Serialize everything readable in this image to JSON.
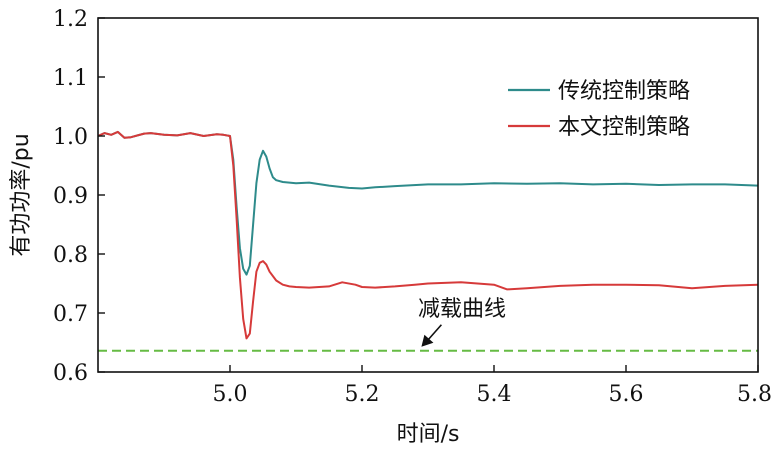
{
  "chart_data": {
    "type": "line",
    "xlabel": "时间/s",
    "ylabel": "有功功率/pu",
    "xlim": [
      4.8,
      5.8
    ],
    "ylim": [
      0.6,
      1.2
    ],
    "xticks": [
      "5.0",
      "5.2",
      "5.4",
      "5.6",
      "5.8"
    ],
    "xtick_values": [
      5.0,
      5.2,
      5.4,
      5.6,
      5.8
    ],
    "yticks": [
      "0.6",
      "0.7",
      "0.8",
      "0.9",
      "1.0",
      "1.1",
      "1.2"
    ],
    "ytick_values": [
      0.6,
      0.7,
      0.8,
      0.9,
      1.0,
      1.1,
      1.2
    ],
    "grid": false,
    "legend_position": "top-right",
    "annotation": {
      "text": "减载曲线",
      "target": [
        5.29,
        0.636
      ]
    },
    "series": [
      {
        "name": "传统控制策略",
        "color": "#2e8b8b",
        "x": [
          4.8,
          4.81,
          4.82,
          4.83,
          4.84,
          4.85,
          4.86,
          4.87,
          4.88,
          4.9,
          4.92,
          4.94,
          4.96,
          4.98,
          4.99,
          5.0,
          5.005,
          5.01,
          5.015,
          5.02,
          5.025,
          5.03,
          5.035,
          5.04,
          5.045,
          5.05,
          5.055,
          5.06,
          5.065,
          5.07,
          5.08,
          5.09,
          5.1,
          5.12,
          5.15,
          5.18,
          5.2,
          5.22,
          5.25,
          5.3,
          5.35,
          5.4,
          5.45,
          5.5,
          5.55,
          5.6,
          5.65,
          5.7,
          5.75,
          5.8
        ],
        "y": [
          1.0,
          1.005,
          1.002,
          1.007,
          0.997,
          0.998,
          1.001,
          1.004,
          1.005,
          1.002,
          1.001,
          1.005,
          1.0,
          1.003,
          1.002,
          1.0,
          0.96,
          0.88,
          0.81,
          0.775,
          0.765,
          0.78,
          0.85,
          0.92,
          0.96,
          0.975,
          0.965,
          0.945,
          0.93,
          0.925,
          0.922,
          0.921,
          0.92,
          0.921,
          0.916,
          0.912,
          0.911,
          0.913,
          0.915,
          0.918,
          0.918,
          0.92,
          0.919,
          0.92,
          0.918,
          0.919,
          0.917,
          0.918,
          0.918,
          0.916
        ]
      },
      {
        "name": "本文控制策略",
        "color": "#d63a3a",
        "x": [
          4.8,
          4.81,
          4.82,
          4.83,
          4.84,
          4.85,
          4.86,
          4.87,
          4.88,
          4.9,
          4.92,
          4.94,
          4.96,
          4.98,
          4.99,
          5.0,
          5.005,
          5.01,
          5.015,
          5.02,
          5.025,
          5.03,
          5.035,
          5.04,
          5.045,
          5.05,
          5.055,
          5.06,
          5.07,
          5.08,
          5.09,
          5.1,
          5.12,
          5.15,
          5.17,
          5.19,
          5.2,
          5.22,
          5.25,
          5.28,
          5.3,
          5.35,
          5.4,
          5.42,
          5.45,
          5.5,
          5.55,
          5.6,
          5.65,
          5.7,
          5.75,
          5.8
        ],
        "y": [
          1.0,
          1.005,
          1.002,
          1.007,
          0.997,
          0.998,
          1.001,
          1.004,
          1.005,
          1.002,
          1.001,
          1.005,
          1.0,
          1.003,
          1.002,
          1.0,
          0.95,
          0.86,
          0.76,
          0.69,
          0.657,
          0.665,
          0.72,
          0.77,
          0.785,
          0.788,
          0.782,
          0.77,
          0.755,
          0.748,
          0.745,
          0.744,
          0.743,
          0.745,
          0.752,
          0.748,
          0.744,
          0.743,
          0.745,
          0.748,
          0.75,
          0.752,
          0.748,
          0.74,
          0.742,
          0.746,
          0.748,
          0.748,
          0.747,
          0.742,
          0.746,
          0.748
        ]
      },
      {
        "name": "减载曲线",
        "color": "#66bb44",
        "dashed": true,
        "x": [
          4.8,
          5.8
        ],
        "y": [
          0.636,
          0.636
        ]
      }
    ]
  }
}
